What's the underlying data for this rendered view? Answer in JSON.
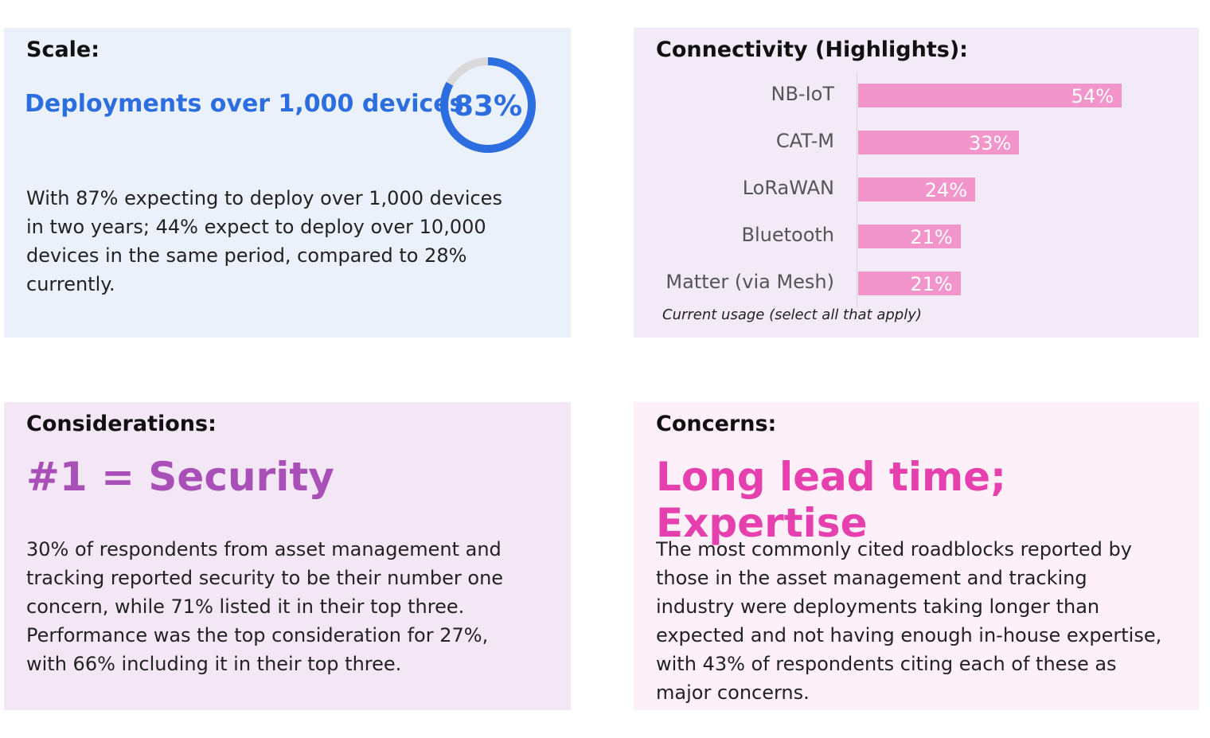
{
  "scale": {
    "heading": "Scale:",
    "headline": "Deployments over 1,000 devices",
    "gauge_value": 83,
    "gauge_label": "83%",
    "text": "With 87% expecting to deploy over 1,000 devices in two years; 44% expect to deploy over 10,000 devices in the same period, compared to 28% currently."
  },
  "connectivity": {
    "heading": "Connectivity (Highlights):",
    "note": "Current usage (select all that apply)"
  },
  "chart_data": {
    "type": "bar",
    "orientation": "horizontal",
    "categories": [
      "NB-IoT",
      "CAT-M",
      "LoRaWAN",
      "Bluetooth",
      "Matter (via Mesh)"
    ],
    "values": [
      54,
      33,
      24,
      21,
      21
    ],
    "data_labels": [
      "54%",
      "33%",
      "24%",
      "21%",
      "21%"
    ],
    "xlabel": "Current usage (select all that apply)",
    "grid": false
  },
  "considerations": {
    "heading": "Considerations:",
    "headline": "#1 = Security",
    "text": "30% of respondents from asset management and tracking reported security to be their number one concern, while 71% listed it in their top three. Performance was the top consideration for 27%, with 66% including it in their top three."
  },
  "concerns": {
    "heading": "Concerns:",
    "headline": "Long lead time; Expertise",
    "text": "The most commonly cited roadblocks reported by those in the asset management and tracking industry were deployments taking longer than expected and not having enough in-house expertise, with 43% of respondents citing each of these as major concerns."
  },
  "colors": {
    "blue": "#2c6ee0",
    "purple": "#a94fb8",
    "pink": "#e63fae",
    "bar": "#f195cb",
    "gauge_track": "#d9d9d9"
  }
}
